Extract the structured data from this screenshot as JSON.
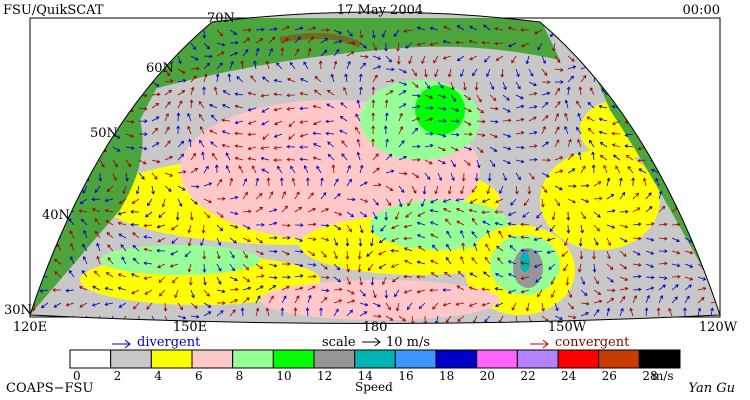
{
  "header": {
    "left": "FSU/QuikSCAT",
    "center": "17 May 2004",
    "right": "00:00"
  },
  "map": {
    "lat_labels": [
      "70N",
      "60N",
      "50N",
      "40N",
      "30N"
    ],
    "lon_labels": [
      "120E",
      "150E",
      "180",
      "150W",
      "120W"
    ]
  },
  "legend": {
    "divergent": "divergent",
    "scale": "scale",
    "scale_value": "10 m/s",
    "convergent": "convergent"
  },
  "colorbar": {
    "colors": [
      "#ffffff",
      "#c8c8c8",
      "#ffff00",
      "#ffc8c8",
      "#96ff96",
      "#00ff00",
      "#969696",
      "#00b4b4",
      "#3c96ff",
      "#0000c8",
      "#ff64ff",
      "#b482ff",
      "#ff0000",
      "#c83c00",
      "#000000"
    ],
    "labels": [
      0,
      2,
      4,
      6,
      8,
      10,
      12,
      14,
      16,
      18,
      20,
      22,
      24,
      26,
      28
    ],
    "unit": "m/s",
    "title": "Speed"
  },
  "footer": {
    "left": "COAPS−FSU",
    "right": "Yan Gu"
  }
}
